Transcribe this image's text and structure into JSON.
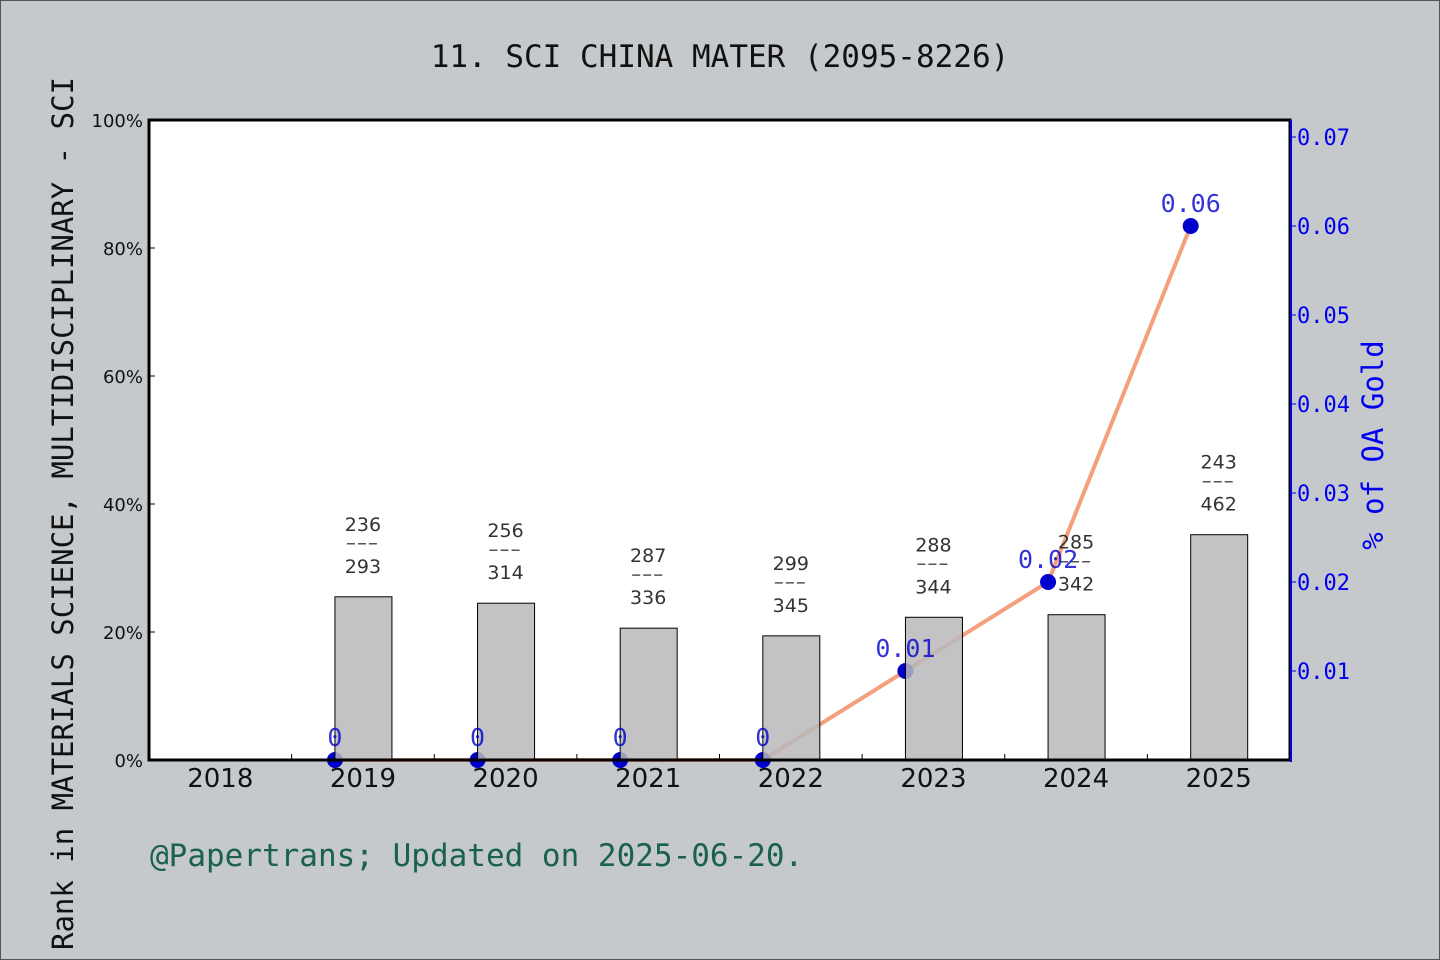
{
  "chart_data": {
    "type": "bar+line",
    "title": "11. SCI CHINA MATER (2095-8226)",
    "ylabel": "Rank in MATERIALS SCIENCE, MULTIDISCIPLINARY - SCI",
    "y2label": "% of OA Gold",
    "footer": "@Papertrans; Updated on 2025-06-20.",
    "categories": [
      "2018",
      "2019",
      "2020",
      "2021",
      "2022",
      "2023",
      "2024",
      "2025"
    ],
    "ylim": [
      0,
      100
    ],
    "yticks": [
      "0%",
      "20%",
      "40%",
      "60%",
      "80%",
      "100%"
    ],
    "y2lim": [
      0,
      0.07
    ],
    "y2ticks": [
      "0.01",
      "0.02",
      "0.03",
      "0.04",
      "0.05",
      "0.06",
      "0.07"
    ],
    "bars": {
      "values": [
        null,
        25.5,
        24.5,
        20.6,
        19.4,
        22.3,
        22.7,
        35.2
      ],
      "rank_labels": [
        null,
        [
          "236",
          "293"
        ],
        [
          "256",
          "314"
        ],
        [
          "287",
          "336"
        ],
        [
          "299",
          "345"
        ],
        [
          "288",
          "344"
        ],
        [
          "285",
          "342"
        ],
        [
          "243",
          "462"
        ]
      ],
      "color": "#b8b9bb"
    },
    "line": {
      "values": [
        null,
        0,
        0,
        0,
        0,
        0.01,
        0.02,
        0.06
      ],
      "labels": [
        null,
        "0",
        "0",
        "0",
        "0",
        "0.01",
        "0.02",
        "0.06"
      ],
      "line_color": "#f4a07c",
      "marker_color": "#0000cc"
    },
    "grid": false
  }
}
